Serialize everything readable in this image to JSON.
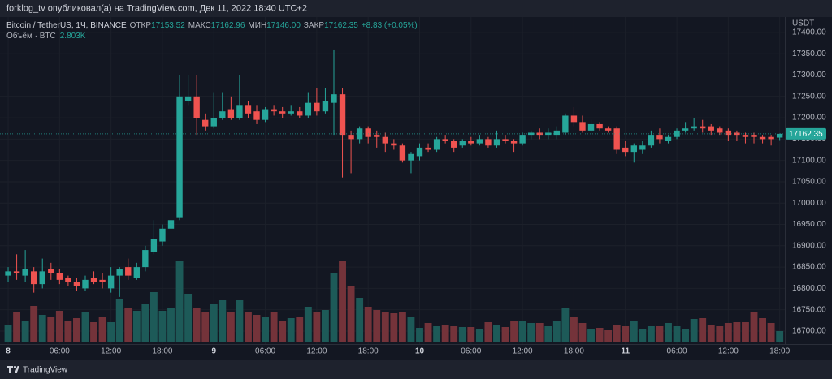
{
  "header": {
    "title": "forklog_tv опубликовал(а) на TradingView.com, Дек 11, 2022 18:40 UTC+2"
  },
  "footer": {
    "brand": "TradingView"
  },
  "chart_data": {
    "type": "candlestick",
    "legend": {
      "symbol": "Bitcoin / TetherUS, 1Ч, BINANCE",
      "items": [
        {
          "name": "ОТКР",
          "value": 17153.52
        },
        {
          "name": "МАКС",
          "value": 17162.96
        },
        {
          "name": "МИН",
          "value": 17146,
          "label": "17146.00"
        },
        {
          "name": "ЗАКР",
          "value": 17162.35
        }
      ],
      "change": "+8.83 (+0.05%)"
    },
    "volume_legend": {
      "name": "Объём · BTC",
      "label": "2.803K"
    },
    "y_unit": "USDT",
    "up_color": "#26a69a",
    "down_color": "#ef5350",
    "volume_up_color": "#1d5a58",
    "volume_down_color": "#74333a",
    "grid": true,
    "open": [
      16830,
      16840,
      16830,
      16840,
      16810,
      16845,
      16835,
      16825,
      16815,
      16800,
      16825,
      16820,
      16800,
      16830,
      16850,
      16825,
      16850,
      16885,
      16910,
      16940,
      16965,
      17240,
      17250,
      17195,
      17180,
      17200,
      17220,
      17200,
      17230,
      17215,
      17195,
      17220,
      17215,
      17210,
      17215,
      17205,
      17235,
      17215,
      17235,
      17255,
      17160,
      17150,
      17175,
      17160,
      17155,
      17140,
      17135,
      17100,
      17110,
      17130,
      17125,
      17150,
      17145,
      17135,
      17145,
      17140,
      17150,
      17135,
      17150,
      17145,
      17140,
      17160,
      17165,
      17160,
      17160,
      17165,
      17205,
      17190,
      17170,
      17185,
      17175,
      17175,
      17130,
      17120,
      17125,
      17135,
      17160,
      17145,
      17155,
      17170,
      17175,
      17180,
      17180,
      17175,
      17170,
      17165,
      17160,
      17160,
      17155,
      17155,
      17153.52
    ],
    "high": [
      16850,
      16880,
      16890,
      16850,
      16870,
      16860,
      16845,
      16830,
      16825,
      16830,
      16840,
      16835,
      16850,
      16850,
      16870,
      16860,
      16900,
      16960,
      16950,
      16975,
      17300,
      17300,
      17300,
      17210,
      17260,
      17260,
      17250,
      17300,
      17240,
      17230,
      17225,
      17230,
      17225,
      17230,
      17225,
      17260,
      17270,
      17270,
      17360,
      17270,
      17170,
      17180,
      17180,
      17170,
      17165,
      17150,
      17140,
      17120,
      17140,
      17140,
      17155,
      17160,
      17150,
      17150,
      17155,
      17160,
      17155,
      17170,
      17160,
      17150,
      17165,
      17170,
      17175,
      17175,
      17180,
      17210,
      17225,
      17205,
      17195,
      17190,
      17180,
      17180,
      17145,
      17140,
      17145,
      17170,
      17175,
      17160,
      17175,
      17190,
      17200,
      17195,
      17185,
      17180,
      17175,
      17170,
      17165,
      17165,
      17160,
      17160,
      17162.96
    ],
    "low": [
      16815,
      16820,
      16815,
      16790,
      16800,
      16820,
      16810,
      16805,
      16795,
      16795,
      16810,
      16800,
      16790,
      16780,
      16820,
      16820,
      16840,
      16880,
      16900,
      16935,
      16960,
      17230,
      17160,
      17170,
      17175,
      17195,
      17195,
      17195,
      17200,
      17185,
      17190,
      17205,
      17200,
      17205,
      17200,
      17200,
      17205,
      17210,
      17160,
      17060,
      17070,
      17140,
      17140,
      17130,
      17120,
      17125,
      17095,
      17070,
      17100,
      17120,
      17120,
      17140,
      17120,
      17130,
      17135,
      17135,
      17130,
      17130,
      17140,
      17120,
      17135,
      17150,
      17150,
      17150,
      17150,
      17160,
      17180,
      17165,
      17165,
      17170,
      17165,
      17115,
      17110,
      17095,
      17115,
      17130,
      17140,
      17140,
      17150,
      17165,
      17170,
      17165,
      17160,
      17160,
      17145,
      17145,
      17140,
      17140,
      17140,
      17135,
      17146
    ],
    "close": [
      16840,
      16835,
      16845,
      16810,
      16840,
      16835,
      16820,
      16815,
      16805,
      16820,
      16815,
      16815,
      16830,
      16845,
      16830,
      16850,
      16890,
      16915,
      16940,
      16960,
      17250,
      17250,
      17200,
      17180,
      17200,
      17215,
      17200,
      17230,
      17210,
      17195,
      17220,
      17215,
      17210,
      17215,
      17205,
      17235,
      17215,
      17240,
      17255,
      17160,
      17150,
      17175,
      17155,
      17155,
      17140,
      17135,
      17100,
      17115,
      17130,
      17125,
      17150,
      17145,
      17130,
      17145,
      17140,
      17150,
      17135,
      17150,
      17145,
      17140,
      17160,
      17165,
      17160,
      17165,
      17170,
      17205,
      17190,
      17170,
      17185,
      17175,
      17170,
      17125,
      17120,
      17135,
      17135,
      17160,
      17150,
      17155,
      17170,
      17175,
      17180,
      17175,
      17170,
      17165,
      17160,
      17160,
      17155,
      17155,
      17150,
      17150,
      17162.35
    ],
    "volume": [
      4400,
      7400,
      5400,
      9000,
      6800,
      6400,
      7800,
      5400,
      6000,
      7400,
      5000,
      6400,
      5000,
      10800,
      8400,
      7800,
      9400,
      12400,
      7800,
      8400,
      20000,
      12000,
      8400,
      7400,
      9400,
      10400,
      7600,
      10400,
      7400,
      6800,
      6400,
      7400,
      5400,
      6000,
      6400,
      8800,
      7400,
      8000,
      17200,
      20200,
      14000,
      11000,
      8800,
      8000,
      7400,
      7200,
      7400,
      6400,
      3600,
      4800,
      4000,
      4400,
      4000,
      3800,
      3800,
      3400,
      5000,
      4400,
      3800,
      5400,
      5400,
      4800,
      4800,
      4000,
      5400,
      8400,
      6400,
      4800,
      3400,
      3600,
      3000,
      4400,
      4000,
      5200,
      3400,
      4000,
      4000,
      4800,
      4000,
      3400,
      5800,
      6000,
      4400,
      4000,
      4800,
      5000,
      5000,
      7400,
      6000,
      4800,
      2803
    ],
    "xlim": [
      -0.95,
      90.6
    ],
    "ylim": [
      16669.5,
      17436
    ],
    "xticks": [
      {
        "value": 0,
        "label": "8"
      },
      {
        "value": 6,
        "label": "06:00"
      },
      {
        "value": 12,
        "label": "12:00"
      },
      {
        "value": 18,
        "label": "18:00"
      },
      {
        "value": 24,
        "label": "9"
      },
      {
        "value": 30,
        "label": "06:00"
      },
      {
        "value": 36,
        "label": "12:00"
      },
      {
        "value": 42,
        "label": "18:00"
      },
      {
        "value": 48,
        "label": "10"
      },
      {
        "value": 54,
        "label": "06:00"
      },
      {
        "value": 60,
        "label": "12:00"
      },
      {
        "value": 66,
        "label": "18:00"
      },
      {
        "value": 72,
        "label": "11"
      },
      {
        "value": 78,
        "label": "06:00"
      },
      {
        "value": 84,
        "label": "12:00"
      },
      {
        "value": 90,
        "label": "18:00"
      }
    ],
    "yticks": [
      {
        "value": 16700,
        "label": "16700.00"
      },
      {
        "value": 16750,
        "label": "16750.00"
      },
      {
        "value": 16800,
        "label": "16800.00"
      },
      {
        "value": 16850,
        "label": "16850.00"
      },
      {
        "value": 16900,
        "label": "16900.00"
      },
      {
        "value": 16950,
        "label": "16950.00"
      },
      {
        "value": 17000,
        "label": "17000.00"
      },
      {
        "value": 17050,
        "label": "17050.00"
      },
      {
        "value": 17100,
        "label": "17100.00"
      },
      {
        "value": 17150,
        "label": "17150.00"
      },
      {
        "value": 17200,
        "label": "17200.00"
      },
      {
        "value": 17250,
        "label": "17250.00"
      },
      {
        "value": 17300,
        "label": "17300.00"
      },
      {
        "value": 17350,
        "label": "17350.00"
      },
      {
        "value": 17400,
        "label": "17400.00"
      }
    ]
  }
}
